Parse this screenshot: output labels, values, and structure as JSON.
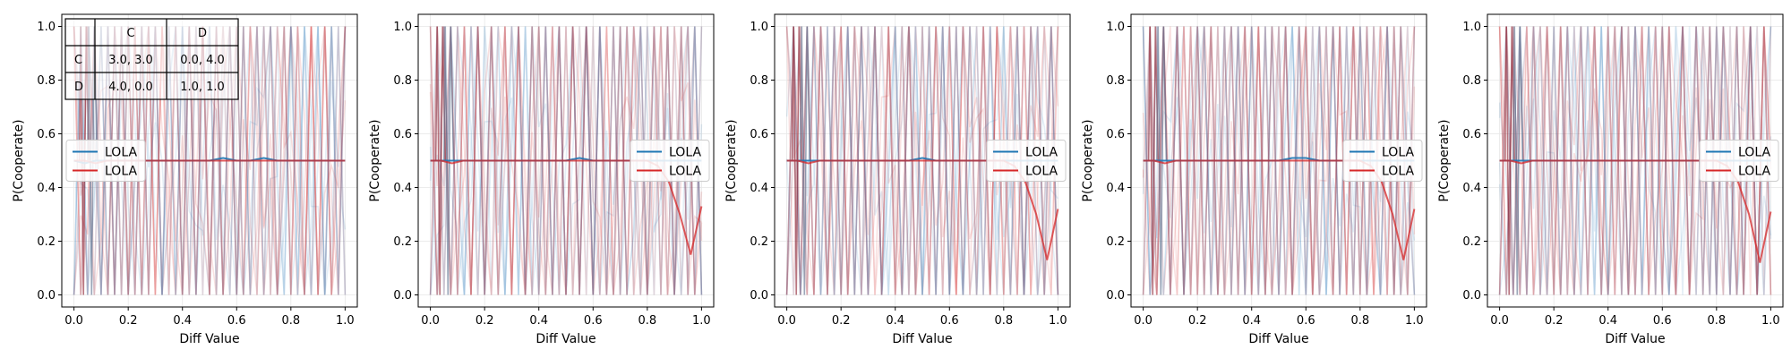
{
  "chart_data": [
    {
      "type": "line",
      "xlabel": "Diff Value",
      "ylabel": "P(Cooperate)",
      "xlim": [
        0,
        1
      ],
      "ylim": [
        0,
        1
      ],
      "xticks": [
        "0.0",
        "0.2",
        "0.4",
        "0.6",
        "0.8",
        "1.0"
      ],
      "yticks": [
        "0.0",
        "0.2",
        "0.4",
        "0.6",
        "0.8",
        "1.0"
      ],
      "grid": true,
      "legend": {
        "placement": "center-left",
        "entries": [
          "LOLA",
          "LOLA"
        ]
      },
      "series": [
        {
          "name": "LOLA",
          "color": "#1f77b4",
          "x": [
            0,
            0.04,
            0.08,
            0.12,
            0.16,
            0.2,
            0.25,
            0.3,
            0.35,
            0.4,
            0.45,
            0.5,
            0.55,
            0.6,
            0.65,
            0.7,
            0.75,
            0.8,
            0.85,
            0.9,
            0.95,
            1.0
          ],
          "y": [
            0.5,
            0.49,
            0.5,
            0.5,
            0.5,
            0.5,
            0.5,
            0.5,
            0.5,
            0.5,
            0.5,
            0.5,
            0.51,
            0.5,
            0.5,
            0.51,
            0.5,
            0.5,
            0.5,
            0.5,
            0.5,
            0.5
          ]
        },
        {
          "name": "LOLA",
          "color": "#d62728",
          "x": [
            0,
            0.04,
            0.08,
            0.12,
            0.16,
            0.2,
            0.25,
            0.3,
            0.35,
            0.4,
            0.45,
            0.5,
            0.55,
            0.6,
            0.65,
            0.7,
            0.75,
            0.8,
            0.85,
            0.9,
            0.95,
            1.0
          ],
          "y": [
            0.5,
            0.5,
            0.49,
            0.5,
            0.5,
            0.5,
            0.5,
            0.5,
            0.5,
            0.5,
            0.5,
            0.5,
            0.5,
            0.5,
            0.5,
            0.5,
            0.5,
            0.5,
            0.5,
            0.5,
            0.5,
            0.5
          ]
        }
      ],
      "payoff_table": {
        "header": [
          "",
          "C",
          "D"
        ],
        "rows": [
          [
            "C",
            "3.0, 3.0",
            "0.0, 4.0"
          ],
          [
            "D",
            "4.0, 0.0",
            "1.0, 1.0"
          ]
        ]
      }
    },
    {
      "type": "line",
      "xlabel": "Diff Value",
      "ylabel": "P(Cooperate)",
      "xlim": [
        0,
        1
      ],
      "ylim": [
        0,
        1
      ],
      "xticks": [
        "0.0",
        "0.2",
        "0.4",
        "0.6",
        "0.8",
        "1.0"
      ],
      "yticks": [
        "0.0",
        "0.2",
        "0.4",
        "0.6",
        "0.8",
        "1.0"
      ],
      "grid": true,
      "legend": {
        "placement": "center-right",
        "entries": [
          "LOLA",
          "LOLA"
        ]
      },
      "series": [
        {
          "name": "LOLA",
          "color": "#1f77b4",
          "x": [
            0,
            0.04,
            0.08,
            0.12,
            0.16,
            0.2,
            0.25,
            0.3,
            0.35,
            0.4,
            0.45,
            0.5,
            0.55,
            0.6,
            0.65,
            0.7,
            0.75,
            0.8,
            0.85,
            0.9,
            0.95,
            1.0
          ],
          "y": [
            0.5,
            0.5,
            0.5,
            0.5,
            0.5,
            0.5,
            0.5,
            0.5,
            0.5,
            0.5,
            0.5,
            0.5,
            0.51,
            0.5,
            0.5,
            0.5,
            0.5,
            0.5,
            0.5,
            0.5,
            0.5,
            0.5
          ]
        },
        {
          "name": "LOLA",
          "color": "#d62728",
          "x": [
            0,
            0.04,
            0.08,
            0.12,
            0.16,
            0.2,
            0.25,
            0.3,
            0.35,
            0.4,
            0.45,
            0.5,
            0.55,
            0.6,
            0.65,
            0.7,
            0.75,
            0.8,
            0.84,
            0.88,
            0.92,
            0.96,
            1.0
          ],
          "y": [
            0.5,
            0.5,
            0.49,
            0.5,
            0.5,
            0.5,
            0.5,
            0.5,
            0.5,
            0.5,
            0.5,
            0.5,
            0.5,
            0.5,
            0.5,
            0.5,
            0.5,
            0.5,
            0.48,
            0.42,
            0.3,
            0.15,
            0.33
          ]
        }
      ]
    },
    {
      "type": "line",
      "xlabel": "Diff Value",
      "ylabel": "P(Cooperate)",
      "xlim": [
        0,
        1
      ],
      "ylim": [
        0,
        1
      ],
      "xticks": [
        "0.0",
        "0.2",
        "0.4",
        "0.6",
        "0.8",
        "1.0"
      ],
      "yticks": [
        "0.0",
        "0.2",
        "0.4",
        "0.6",
        "0.8",
        "1.0"
      ],
      "grid": true,
      "legend": {
        "placement": "center-right",
        "entries": [
          "LOLA",
          "LOLA"
        ]
      },
      "series": [
        {
          "name": "LOLA",
          "color": "#1f77b4",
          "x": [
            0,
            0.04,
            0.08,
            0.12,
            0.16,
            0.2,
            0.25,
            0.3,
            0.35,
            0.4,
            0.45,
            0.5,
            0.55,
            0.6,
            0.65,
            0.7,
            0.75,
            0.8,
            0.85,
            0.9,
            0.95,
            1.0
          ],
          "y": [
            0.5,
            0.5,
            0.5,
            0.5,
            0.5,
            0.5,
            0.5,
            0.5,
            0.5,
            0.5,
            0.5,
            0.51,
            0.5,
            0.5,
            0.5,
            0.5,
            0.5,
            0.5,
            0.5,
            0.5,
            0.5,
            0.5
          ]
        },
        {
          "name": "LOLA",
          "color": "#d62728",
          "x": [
            0,
            0.04,
            0.08,
            0.12,
            0.16,
            0.2,
            0.25,
            0.3,
            0.35,
            0.4,
            0.45,
            0.5,
            0.55,
            0.6,
            0.65,
            0.7,
            0.75,
            0.8,
            0.84,
            0.88,
            0.92,
            0.96,
            1.0
          ],
          "y": [
            0.5,
            0.5,
            0.49,
            0.5,
            0.5,
            0.5,
            0.5,
            0.5,
            0.5,
            0.5,
            0.5,
            0.5,
            0.5,
            0.5,
            0.5,
            0.5,
            0.5,
            0.5,
            0.48,
            0.42,
            0.3,
            0.13,
            0.32
          ]
        }
      ]
    },
    {
      "type": "line",
      "xlabel": "Diff Value",
      "ylabel": "P(Cooperate)",
      "xlim": [
        0,
        1
      ],
      "ylim": [
        0,
        1
      ],
      "xticks": [
        "0.0",
        "0.2",
        "0.4",
        "0.6",
        "0.8",
        "1.0"
      ],
      "yticks": [
        "0.0",
        "0.2",
        "0.4",
        "0.6",
        "0.8",
        "1.0"
      ],
      "grid": true,
      "legend": {
        "placement": "center-right",
        "entries": [
          "LOLA",
          "LOLA"
        ]
      },
      "series": [
        {
          "name": "LOLA",
          "color": "#1f77b4",
          "x": [
            0,
            0.04,
            0.08,
            0.12,
            0.16,
            0.2,
            0.25,
            0.3,
            0.35,
            0.4,
            0.45,
            0.5,
            0.55,
            0.6,
            0.65,
            0.7,
            0.75,
            0.8,
            0.85,
            0.9,
            0.95,
            1.0
          ],
          "y": [
            0.5,
            0.5,
            0.5,
            0.5,
            0.5,
            0.5,
            0.5,
            0.5,
            0.5,
            0.5,
            0.5,
            0.5,
            0.51,
            0.51,
            0.5,
            0.5,
            0.5,
            0.5,
            0.5,
            0.5,
            0.5,
            0.5
          ]
        },
        {
          "name": "LOLA",
          "color": "#d62728",
          "x": [
            0,
            0.04,
            0.08,
            0.12,
            0.16,
            0.2,
            0.25,
            0.3,
            0.35,
            0.4,
            0.45,
            0.5,
            0.55,
            0.6,
            0.65,
            0.7,
            0.75,
            0.8,
            0.84,
            0.88,
            0.92,
            0.96,
            1.0
          ],
          "y": [
            0.5,
            0.5,
            0.49,
            0.5,
            0.5,
            0.5,
            0.5,
            0.5,
            0.5,
            0.5,
            0.5,
            0.5,
            0.5,
            0.5,
            0.5,
            0.5,
            0.5,
            0.5,
            0.48,
            0.42,
            0.3,
            0.13,
            0.32
          ]
        }
      ]
    },
    {
      "type": "line",
      "xlabel": "Diff Value",
      "ylabel": "P(Cooperate)",
      "xlim": [
        0,
        1
      ],
      "ylim": [
        0,
        1
      ],
      "xticks": [
        "0.0",
        "0.2",
        "0.4",
        "0.6",
        "0.8",
        "1.0"
      ],
      "yticks": [
        "0.0",
        "0.2",
        "0.4",
        "0.6",
        "0.8",
        "1.0"
      ],
      "grid": true,
      "legend": {
        "placement": "center-right",
        "entries": [
          "LOLA",
          "LOLA"
        ]
      },
      "series": [
        {
          "name": "LOLA",
          "color": "#1f77b4",
          "x": [
            0,
            0.04,
            0.08,
            0.12,
            0.16,
            0.2,
            0.25,
            0.3,
            0.35,
            0.4,
            0.45,
            0.5,
            0.55,
            0.6,
            0.65,
            0.7,
            0.75,
            0.8,
            0.85,
            0.9,
            0.95,
            1.0
          ],
          "y": [
            0.5,
            0.5,
            0.5,
            0.5,
            0.5,
            0.5,
            0.5,
            0.5,
            0.5,
            0.5,
            0.5,
            0.5,
            0.5,
            0.5,
            0.5,
            0.5,
            0.5,
            0.5,
            0.5,
            0.5,
            0.5,
            0.5
          ]
        },
        {
          "name": "LOLA",
          "color": "#d62728",
          "x": [
            0,
            0.04,
            0.08,
            0.12,
            0.16,
            0.2,
            0.25,
            0.3,
            0.35,
            0.4,
            0.45,
            0.5,
            0.55,
            0.6,
            0.65,
            0.7,
            0.75,
            0.8,
            0.84,
            0.88,
            0.92,
            0.96,
            1.0
          ],
          "y": [
            0.5,
            0.5,
            0.49,
            0.5,
            0.5,
            0.5,
            0.5,
            0.5,
            0.5,
            0.5,
            0.5,
            0.5,
            0.5,
            0.5,
            0.5,
            0.5,
            0.5,
            0.5,
            0.48,
            0.42,
            0.3,
            0.12,
            0.31
          ]
        }
      ]
    }
  ]
}
